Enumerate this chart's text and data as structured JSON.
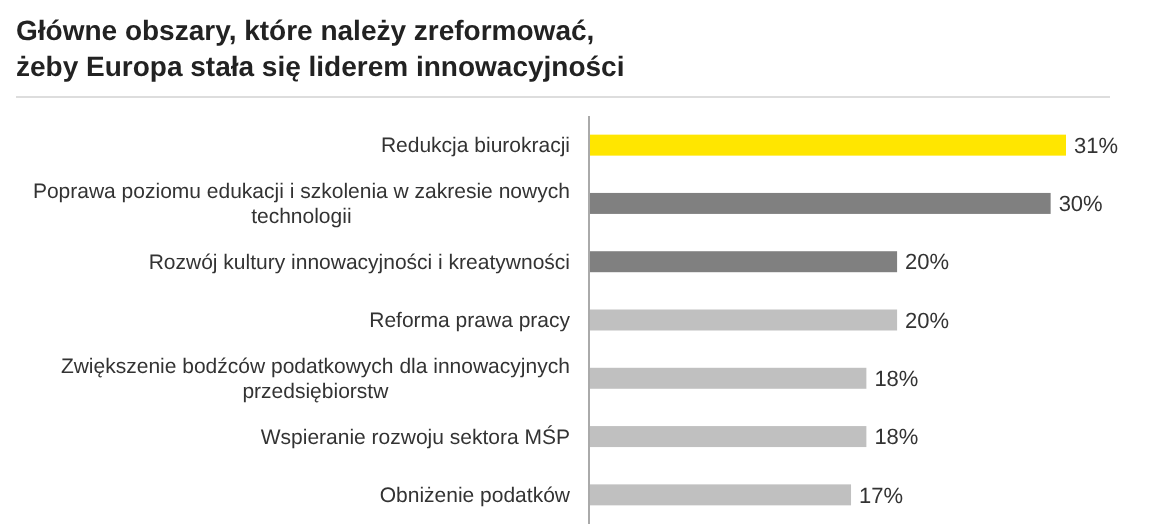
{
  "chart_data": {
    "type": "bar",
    "orientation": "horizontal",
    "title": "Główne obszary, które należy zreformować,\nżeby Europa stała się liderem innowacyjności",
    "categories": [
      "Redukcja biurokracji",
      "Poprawa poziomu edukacji i szkolenia w zakresie nowych technologii",
      "Rozwój kultury innowacyjności i kreatywności",
      "Reforma prawa pracy",
      "Zwiększenie bodźców podatkowych dla innowacyjnych przedsiębiorstw",
      "Wspieranie rozwoju sektora MŚP",
      "Obniżenie podatków"
    ],
    "values": [
      31,
      30,
      20,
      20,
      18,
      18,
      17
    ],
    "value_labels": [
      "31%",
      "30%",
      "20%",
      "20%",
      "18%",
      "18%",
      "17%"
    ],
    "colors": [
      "#ffe600",
      "#808080",
      "#808080",
      "#c0c0c0",
      "#c0c0c0",
      "#c0c0c0",
      "#c0c0c0"
    ]
  }
}
